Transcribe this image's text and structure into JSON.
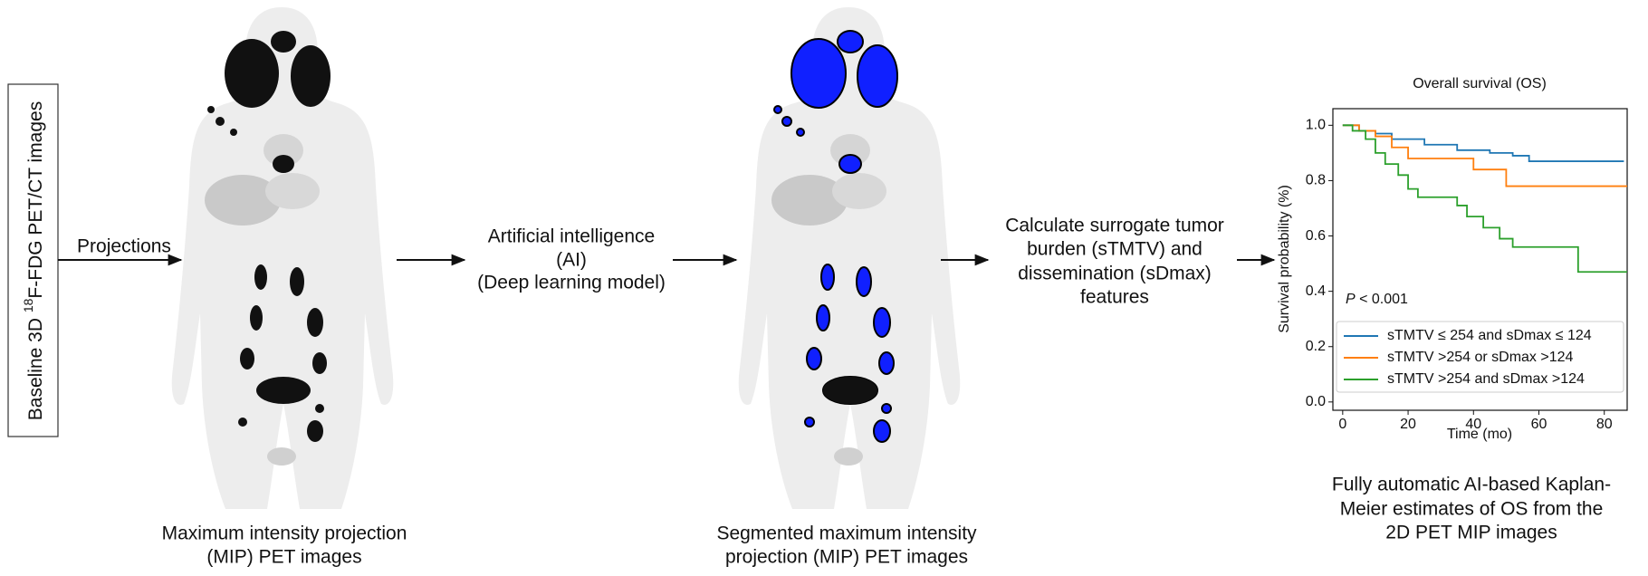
{
  "left_box": {
    "prefix": "Baseline 3D ",
    "superscript": "18",
    "suffix": "F-FDG PET/CT images"
  },
  "projections_label": "Projections",
  "mip_caption": [
    "Maximum intensity projection",
    "(MIP)  PET images"
  ],
  "ai_text": [
    "Artificial intelligence",
    "(AI)",
    "(Deep learning model)"
  ],
  "segmented_caption": [
    "Segmented maximum intensity",
    "projection (MIP) PET images"
  ],
  "features_text": [
    "Calculate surrogate tumor",
    "burden (sTMTV) and",
    "dissemination (sDmax)",
    "features"
  ],
  "km_caption": [
    "Fully automatic AI-based Kaplan-",
    "Meier estimates of OS from the",
    "2D PET MIP images"
  ],
  "chart": {
    "type": "step",
    "title": "Overall survival (OS)",
    "x_label": "Time (mo)",
    "y_label": "Survival probability (%)",
    "p_symbol": "P",
    "p_text": " < 0.001",
    "xlim": [
      -3,
      87
    ],
    "ylim": [
      -0.03,
      1.06
    ],
    "xticks": [
      0,
      20,
      40,
      60,
      80
    ],
    "yticks": [
      {
        "value": 0,
        "label": "0.0"
      },
      {
        "value": 0.2,
        "label": "0.2"
      },
      {
        "value": 0.4,
        "label": "0.4"
      },
      {
        "value": 0.6,
        "label": "0.6"
      },
      {
        "value": 0.8,
        "label": "0.8"
      },
      {
        "value": 1,
        "label": "1.0"
      }
    ],
    "series": [
      {
        "name": "sTMTV  ≤ 254 and sDmax  ≤ 124",
        "color": "#1f77b4",
        "x": [
          0,
          5,
          10,
          15,
          25,
          35,
          45,
          52,
          57,
          86
        ],
        "y": [
          1,
          0.98,
          0.97,
          0.95,
          0.93,
          0.91,
          0.9,
          0.89,
          0.87,
          0.87
        ]
      },
      {
        "name": "sTMTV >254 or sDmax >124",
        "color": "#ff7f0e",
        "x": [
          0,
          5,
          10,
          15,
          20,
          40,
          50,
          87
        ],
        "y": [
          1,
          0.98,
          0.96,
          0.92,
          0.88,
          0.84,
          0.78,
          0.78
        ]
      },
      {
        "name": "sTMTV >254 and sDmax >124",
        "color": "#2ca02c",
        "x": [
          0,
          3,
          7,
          10,
          13,
          17,
          20,
          23,
          35,
          38,
          43,
          48,
          52,
          72,
          87
        ],
        "y": [
          1,
          0.98,
          0.95,
          0.9,
          0.86,
          0.82,
          0.77,
          0.74,
          0.71,
          0.67,
          0.63,
          0.59,
          0.56,
          0.47,
          0.47
        ]
      }
    ]
  }
}
